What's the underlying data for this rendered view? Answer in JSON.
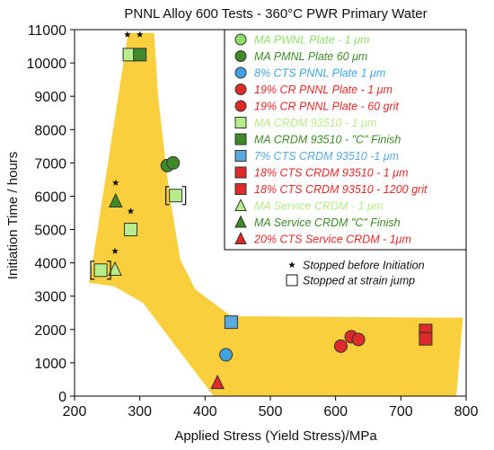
{
  "chart_data": {
    "type": "scatter",
    "title": "PNNL Alloy 600 Tests - 360°C PWR Primary Water",
    "xlabel": "Applied Stress (Yield Stress)/MPa",
    "ylabel": "Initiation Time / hours",
    "xlim": [
      200,
      800
    ],
    "ylim": [
      0,
      11000
    ],
    "x_ticks": [
      200,
      300,
      400,
      500,
      600,
      700,
      800
    ],
    "y_ticks": [
      0,
      1000,
      2000,
      3000,
      4000,
      5000,
      6000,
      7000,
      8000,
      9000,
      10000,
      11000
    ],
    "grid": false,
    "legend_position": "top-right",
    "envelope": {
      "color": "#F9CF3E",
      "polygon": [
        [
          225,
          3700
        ],
        [
          282,
          10900
        ],
        [
          322,
          10900
        ],
        [
          328,
          9000
        ],
        [
          345,
          6100
        ],
        [
          362,
          4100
        ],
        [
          385,
          3200
        ],
        [
          440,
          2400
        ],
        [
          795,
          2350
        ],
        [
          785,
          0
        ],
        [
          413,
          0
        ],
        [
          355,
          1500
        ],
        [
          305,
          2800
        ],
        [
          260,
          3300
        ],
        [
          222,
          3400
        ]
      ]
    },
    "series": [
      {
        "name": "MA PWNL Plate - 1 μm",
        "marker": "circle",
        "color": "#8FDC6A",
        "points": []
      },
      {
        "name": "MA PMNL Plate 60 μm",
        "marker": "circle",
        "color": "#3E8A2A",
        "points": [
          [
            342,
            6920
          ],
          [
            351,
            7000
          ]
        ]
      },
      {
        "name": "8% CTS PNNL Plate 1 μm",
        "marker": "circle",
        "color": "#3EA3DF",
        "points": [
          [
            432,
            1240
          ]
        ]
      },
      {
        "name": "19% CR PNNL Plate - 1 μm",
        "marker": "circle",
        "color": "#DE2A2A",
        "points": [
          [
            624,
            1780
          ],
          [
            635,
            1700
          ]
        ]
      },
      {
        "name": "19% CR PNNL Plate - 60 grit",
        "marker": "circle",
        "color": "#DE2A2A",
        "points": [
          [
            608,
            1500
          ]
        ]
      },
      {
        "name": "MA CRDM 93510 - 1 μm",
        "marker": "square",
        "color": "#B6EC8A",
        "points": [
          [
            284,
            10250
          ],
          [
            286,
            5000
          ],
          [
            355,
            6020
          ],
          [
            240,
            3780
          ]
        ]
      },
      {
        "name": "MA CRDM 93510 - \"C\" Finish",
        "marker": "square",
        "color": "#3E8A2A",
        "points": [
          [
            300,
            10250
          ]
        ]
      },
      {
        "name": "7% CTS CRDM 93510 -1 μm",
        "marker": "square",
        "color": "#5AA9E0",
        "points": [
          [
            440,
            2220
          ]
        ]
      },
      {
        "name": "18% CTS CRDM 93510 - 1 μm",
        "marker": "square",
        "color": "#DE2A2A",
        "points": [
          [
            738,
            1970
          ]
        ]
      },
      {
        "name": "18% CTS CRDM 93510 - 1200 grit",
        "marker": "square",
        "color": "#DE2A2A",
        "points": [
          [
            738,
            1720
          ]
        ]
      },
      {
        "name": "MA Service CRDM - 1 μm",
        "marker": "triangle",
        "color": "#B6EC8A",
        "points": [
          [
            262,
            3800
          ]
        ]
      },
      {
        "name": "MA Service CRDM  \"C\" Finish",
        "marker": "triangle",
        "color": "#3E8A2A",
        "points": [
          [
            263,
            5850
          ]
        ]
      },
      {
        "name": "20% CTS Service CRDM - 1μm",
        "marker": "triangle",
        "color": "#DE2A2A",
        "points": [
          [
            419,
            400
          ]
        ]
      }
    ],
    "stopped_before_initiation": [
      [
        281,
        10850
      ],
      [
        300,
        10850
      ],
      [
        263,
        6400
      ],
      [
        286,
        5550
      ],
      [
        262,
        4350
      ]
    ],
    "stopped_at_strain_jump": [
      [
        355,
        6020
      ],
      [
        240,
        3780
      ]
    ],
    "notes": [
      {
        "symbol": "star",
        "text": "Stopped  before Initiation"
      },
      {
        "symbol": "open-square",
        "text": "Stopped at strain jump"
      }
    ]
  }
}
